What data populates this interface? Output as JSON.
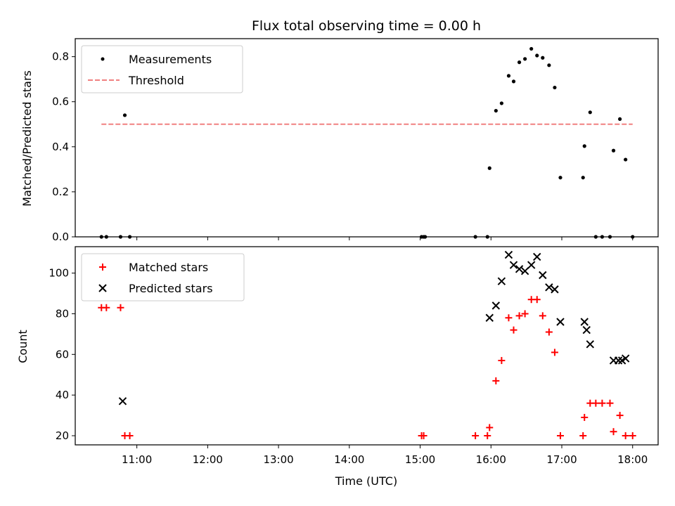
{
  "chart_data": [
    {
      "type": "scatter",
      "title": "Flux total observing time = 0.00 h",
      "ylabel": "Matched/Predicted stars",
      "xlabel": "",
      "ylim": [
        0,
        0.88
      ],
      "yticks": [
        0,
        0.2,
        0.4,
        0.6,
        0.8
      ],
      "ytick_labels": [
        "0.0",
        "0.2",
        "0.4",
        "0.6",
        "0.8"
      ],
      "xlim": [
        10.13,
        18.36
      ],
      "xticks": [
        11,
        12,
        13,
        14,
        15,
        16,
        17,
        18
      ],
      "legend": "top-left",
      "series": [
        {
          "name": "Measurements",
          "color": "#000000",
          "marker": "dot",
          "x": [
            10.5,
            10.57,
            10.77,
            10.83,
            10.9,
            15.02,
            15.05,
            15.07,
            15.78,
            15.95,
            15.98,
            16.07,
            16.15,
            16.25,
            16.32,
            16.4,
            16.48,
            16.57,
            16.65,
            16.73,
            16.82,
            16.9,
            16.98,
            17.3,
            17.32,
            17.4,
            17.48,
            17.57,
            17.68,
            17.73,
            17.82,
            17.9,
            18.0
          ],
          "y": [
            0,
            0,
            0,
            0.54,
            0,
            0,
            0,
            0,
            0,
            0,
            0.305,
            0.56,
            0.593,
            0.715,
            0.69,
            0.775,
            0.79,
            0.835,
            0.805,
            0.795,
            0.762,
            0.663,
            0.263,
            0.263,
            0.403,
            0.553,
            0,
            0,
            0,
            0.383,
            0.523,
            0.343,
            0
          ]
        },
        {
          "name": "Threshold",
          "color": "#f08080",
          "style": "dashed",
          "x": [
            10.5,
            18.0
          ],
          "y": [
            0.5,
            0.5
          ]
        }
      ]
    },
    {
      "type": "scatter",
      "title": "",
      "ylabel": "Count",
      "xlabel": "Time (UTC)",
      "ylim": [
        15.5,
        113
      ],
      "yticks": [
        20,
        40,
        60,
        80,
        100
      ],
      "ytick_labels": [
        "20",
        "40",
        "60",
        "80",
        "100"
      ],
      "xlim": [
        10.13,
        18.36
      ],
      "xticks": [
        11,
        12,
        13,
        14,
        15,
        16,
        17,
        18
      ],
      "xtick_labels": [
        "11:00",
        "12:00",
        "13:00",
        "14:00",
        "15:00",
        "16:00",
        "17:00",
        "18:00"
      ],
      "legend": "top-left",
      "series": [
        {
          "name": "Matched stars",
          "color": "#ff0000",
          "marker": "plus",
          "x": [
            10.5,
            10.57,
            10.77,
            10.83,
            10.9,
            15.02,
            15.05,
            15.78,
            15.95,
            15.98,
            16.07,
            16.15,
            16.25,
            16.32,
            16.4,
            16.48,
            16.57,
            16.65,
            16.73,
            16.82,
            16.9,
            16.98,
            17.3,
            17.32,
            17.4,
            17.48,
            17.57,
            17.68,
            17.73,
            17.82,
            17.9,
            18.0
          ],
          "y": [
            83,
            83,
            83,
            20,
            20,
            20,
            20,
            20,
            20,
            24,
            47,
            57,
            78,
            72,
            79,
            80,
            87,
            87,
            79,
            71,
            61,
            20,
            20,
            29,
            36,
            36,
            36,
            36,
            22,
            30,
            20,
            20
          ]
        },
        {
          "name": "Predicted stars",
          "color": "#000000",
          "marker": "x",
          "x": [
            10.8,
            15.98,
            16.07,
            16.15,
            16.25,
            16.32,
            16.4,
            16.48,
            16.57,
            16.65,
            16.73,
            16.82,
            16.9,
            16.98,
            17.32,
            17.35,
            17.4,
            17.73,
            17.8,
            17.85,
            17.9
          ],
          "y": [
            37,
            78,
            84,
            96,
            109,
            104,
            102,
            101,
            104,
            108,
            99,
            93,
            92,
            76,
            76,
            72,
            65,
            57,
            57,
            57,
            58
          ]
        }
      ]
    }
  ]
}
